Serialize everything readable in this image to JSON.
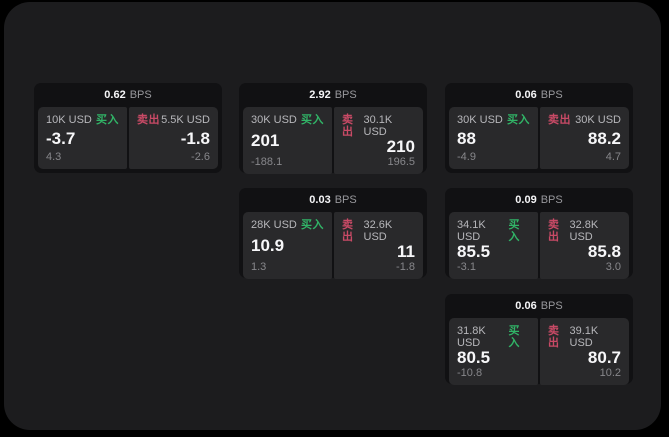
{
  "labels": {
    "buy": "买入",
    "sell": "卖出",
    "bps_unit": "BPS"
  },
  "colors": {
    "background": "#000000",
    "surface": "#1c1c1e",
    "card": "#111113",
    "panel": "#29292b",
    "buy_green": "#31b467",
    "sell_red": "#c94a66"
  },
  "cards": [
    {
      "bps": "0.62",
      "buy": {
        "amount": "10K USD",
        "price": "-3.7",
        "delta": "4.3"
      },
      "sell": {
        "amount": "5.5K USD",
        "price": "-1.8",
        "delta": "-2.6"
      }
    },
    {
      "bps": "2.92",
      "buy": {
        "amount": "30K USD",
        "price": "201",
        "delta": "-188.1"
      },
      "sell": {
        "amount": "30.1K USD",
        "price": "210",
        "delta": "196.5"
      }
    },
    {
      "bps": "0.06",
      "buy": {
        "amount": "30K USD",
        "price": "88",
        "delta": "-4.9"
      },
      "sell": {
        "amount": "30K USD",
        "price": "88.2",
        "delta": "4.7"
      }
    },
    {
      "bps": "0.03",
      "buy": {
        "amount": "28K USD",
        "price": "10.9",
        "delta": "1.3"
      },
      "sell": {
        "amount": "32.6K USD",
        "price": "11",
        "delta": "-1.8"
      }
    },
    {
      "bps": "0.09",
      "buy": {
        "amount": "34.1K USD",
        "price": "85.5",
        "delta": "-3.1"
      },
      "sell": {
        "amount": "32.8K USD",
        "price": "85.8",
        "delta": "3.0"
      }
    },
    {
      "bps": "0.06",
      "buy": {
        "amount": "31.8K USD",
        "price": "80.5",
        "delta": "-10.8"
      },
      "sell": {
        "amount": "39.1K USD",
        "price": "80.7",
        "delta": "10.2"
      }
    }
  ]
}
